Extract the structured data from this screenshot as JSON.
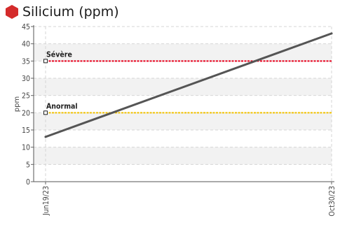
{
  "title": "Silicium (ppm)",
  "colors": {
    "icon": "#d42b2b",
    "line": "#555555",
    "severe": "#e8001c",
    "abnormal": "#f2c200",
    "band": "#f2f2f2",
    "grid": "#d6d6d6"
  },
  "chart_data": {
    "type": "line",
    "title": "Silicium (ppm)",
    "ylabel": "ppm",
    "xlabel": "",
    "ylim": [
      0,
      45
    ],
    "yticks": [
      0,
      5,
      10,
      15,
      20,
      25,
      30,
      35,
      40,
      45
    ],
    "x": [
      "Jun19/23",
      "Oct30/23"
    ],
    "series": [
      {
        "values": [
          13,
          43
        ]
      }
    ],
    "thresholds": [
      {
        "label": "Sévère",
        "value": 35
      },
      {
        "label": "Anormal",
        "value": 20
      }
    ],
    "grid": true,
    "legend": "none"
  }
}
